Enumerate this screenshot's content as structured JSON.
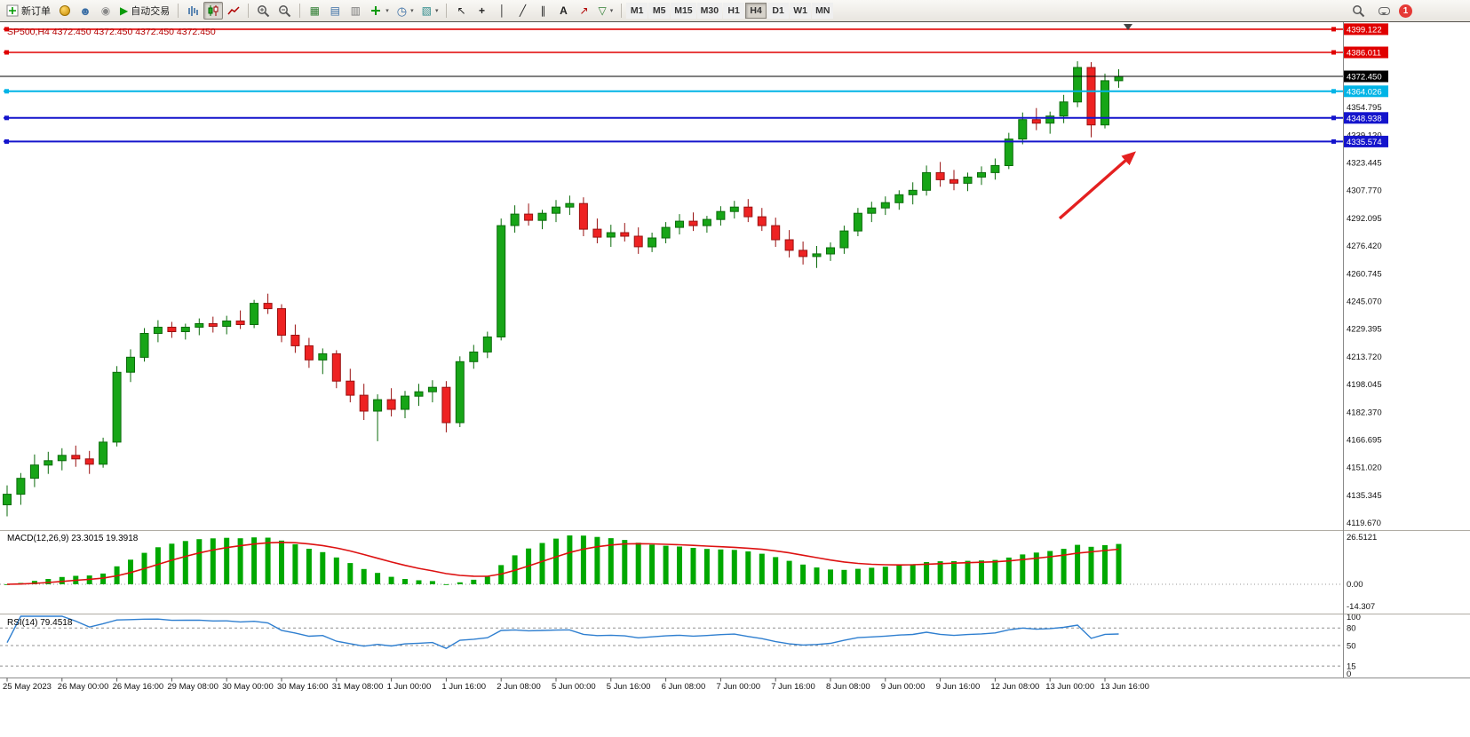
{
  "toolbar": {
    "new_order": "新订单",
    "auto_trading": "自动交易",
    "timeframes": [
      "M1",
      "M5",
      "M15",
      "M30",
      "H1",
      "H4",
      "D1",
      "W1",
      "MN"
    ],
    "active_timeframe": "H4",
    "notification_badge": "1"
  },
  "icons": {
    "profile": "☻",
    "community": "◉",
    "autotrade": "▶",
    "tile": "▦",
    "cascade": "▤",
    "arrange": "▥",
    "periods": "◷",
    "templates": "▧",
    "cursor": "↖",
    "crosshair": "+",
    "vline": "│",
    "trendline": "╱",
    "channel": "∥",
    "text_tool": "A",
    "arrow_tool": "↗",
    "shapes": "▽",
    "caret": "▾",
    "shift_marker": "▼"
  },
  "chart": {
    "title": "SP500,H4 4372.450 4372.450 4372.450 4372.450",
    "bid": {
      "label": "4372.450",
      "price": 4372.45,
      "color": "#000000"
    },
    "levels": [
      {
        "price": 4399.122,
        "label": "4399.122",
        "color": "#e00000",
        "width": 1.6
      },
      {
        "price": 4386.011,
        "label": "4386.011",
        "color": "#e00000",
        "width": 1.6
      },
      {
        "price": 4364.026,
        "label": "4364.026",
        "color": "#00b4e6",
        "width": 2
      },
      {
        "price": 4348.938,
        "label": "4348.938",
        "color": "#1414cc",
        "width": 2
      },
      {
        "price": 4335.574,
        "label": "4335.574",
        "color": "#1414cc",
        "width": 2
      }
    ],
    "y_ticks": [
      4354.795,
      4339.12,
      4323.445,
      4307.77,
      4292.095,
      4276.42,
      4260.745,
      4245.07,
      4229.395,
      4213.72,
      4198.045,
      4182.37,
      4166.695,
      4151.02,
      4135.345,
      4119.67
    ],
    "price_top": 4400.6,
    "price_bottom": 4118.2,
    "up_color": "#17a517",
    "up_stroke": "#0b6b0b",
    "down_color": "#ee2222",
    "down_stroke": "#991111"
  },
  "chart_data": {
    "type": "candlestick",
    "symbol": "SP500",
    "timeframe": "H4",
    "label_every": 4,
    "time_labels": [
      "25 May 2023",
      "26 May 00:00",
      "26 May 16:00",
      "29 May 08:00",
      "30 May 00:00",
      "30 May 16:00",
      "31 May 08:00",
      "1 Jun 00:00",
      "1 Jun 16:00",
      "2 Jun 08:00",
      "5 Jun 00:00",
      "5 Jun 16:00",
      "6 Jun 08:00",
      "7 Jun 00:00",
      "7 Jun 16:00",
      "8 Jun 08:00",
      "9 Jun 00:00",
      "9 Jun 16:00",
      "12 Jun 08:00",
      "13 Jun 00:00",
      "13 Jun 16:00"
    ],
    "ohlc": [
      [
        4130.0,
        4141.0,
        4123.5,
        4136.0
      ],
      [
        4136.0,
        4148.0,
        4130.0,
        4145.0
      ],
      [
        4145.0,
        4158.5,
        4140.0,
        4152.5
      ],
      [
        4152.5,
        4160.0,
        4147.5,
        4155.0
      ],
      [
        4155.0,
        4162.0,
        4149.5,
        4158.0
      ],
      [
        4158.0,
        4163.5,
        4151.5,
        4156.0
      ],
      [
        4156.0,
        4160.5,
        4147.5,
        4153.0
      ],
      [
        4153.0,
        4168.0,
        4151.0,
        4165.5
      ],
      [
        4165.5,
        4208.5,
        4163.0,
        4205.0
      ],
      [
        4205.0,
        4218.0,
        4199.5,
        4213.5
      ],
      [
        4213.5,
        4230.0,
        4211.0,
        4227.0
      ],
      [
        4227.0,
        4234.5,
        4222.0,
        4230.5
      ],
      [
        4230.5,
        4233.5,
        4224.5,
        4228.0
      ],
      [
        4228.0,
        4232.5,
        4223.5,
        4230.5
      ],
      [
        4230.5,
        4235.5,
        4226.0,
        4232.5
      ],
      [
        4232.5,
        4236.5,
        4227.5,
        4231.0
      ],
      [
        4231.0,
        4237.0,
        4226.5,
        4234.0
      ],
      [
        4234.0,
        4240.0,
        4229.5,
        4232.0
      ],
      [
        4232.0,
        4246.0,
        4230.0,
        4244.0
      ],
      [
        4244.0,
        4249.5,
        4238.0,
        4241.0
      ],
      [
        4241.0,
        4243.5,
        4222.0,
        4226.0
      ],
      [
        4226.0,
        4232.0,
        4216.0,
        4220.0
      ],
      [
        4220.0,
        4224.5,
        4207.5,
        4212.0
      ],
      [
        4212.0,
        4218.5,
        4204.0,
        4215.5
      ],
      [
        4215.5,
        4217.5,
        4196.0,
        4200.0
      ],
      [
        4200.0,
        4207.0,
        4188.0,
        4192.0
      ],
      [
        4192.0,
        4198.5,
        4178.0,
        4183.0
      ],
      [
        4183.0,
        4192.5,
        4166.0,
        4189.5
      ],
      [
        4189.5,
        4196.0,
        4180.0,
        4184.0
      ],
      [
        4184.0,
        4194.5,
        4179.0,
        4191.5
      ],
      [
        4191.5,
        4198.5,
        4186.0,
        4194.0
      ],
      [
        4194.0,
        4200.5,
        4188.0,
        4196.5
      ],
      [
        4196.5,
        4200.0,
        4171.0,
        4176.5
      ],
      [
        4176.5,
        4214.0,
        4174.0,
        4211.0
      ],
      [
        4211.0,
        4220.5,
        4207.0,
        4216.5
      ],
      [
        4216.5,
        4228.0,
        4213.0,
        4225.0
      ],
      [
        4225.0,
        4292.0,
        4223.0,
        4288.0
      ],
      [
        4288.0,
        4299.5,
        4284.0,
        4294.5
      ],
      [
        4294.5,
        4300.5,
        4288.0,
        4291.0
      ],
      [
        4291.0,
        4297.0,
        4286.0,
        4295.0
      ],
      [
        4295.0,
        4302.5,
        4290.0,
        4298.5
      ],
      [
        4298.5,
        4305.0,
        4294.0,
        4300.5
      ],
      [
        4300.5,
        4304.0,
        4282.0,
        4286.0
      ],
      [
        4286.0,
        4292.0,
        4278.0,
        4281.5
      ],
      [
        4281.5,
        4288.5,
        4276.0,
        4284.0
      ],
      [
        4284.0,
        4289.5,
        4279.0,
        4282.0
      ],
      [
        4282.0,
        4287.0,
        4272.0,
        4276.0
      ],
      [
        4276.0,
        4284.0,
        4273.0,
        4281.0
      ],
      [
        4281.0,
        4290.0,
        4278.0,
        4287.0
      ],
      [
        4287.0,
        4294.5,
        4283.0,
        4290.5
      ],
      [
        4290.5,
        4295.5,
        4285.0,
        4288.0
      ],
      [
        4288.0,
        4293.5,
        4284.0,
        4291.5
      ],
      [
        4291.5,
        4299.0,
        4288.0,
        4296.0
      ],
      [
        4296.0,
        4302.0,
        4292.0,
        4298.5
      ],
      [
        4298.5,
        4303.0,
        4290.0,
        4293.0
      ],
      [
        4293.0,
        4298.0,
        4285.0,
        4288.0
      ],
      [
        4288.0,
        4292.5,
        4276.0,
        4280.0
      ],
      [
        4280.0,
        4285.5,
        4270.0,
        4274.0
      ],
      [
        4274.0,
        4279.0,
        4266.0,
        4270.5
      ],
      [
        4270.5,
        4276.5,
        4264.0,
        4272.0
      ],
      [
        4272.0,
        4278.5,
        4268.0,
        4275.5
      ],
      [
        4275.5,
        4288.0,
        4272.0,
        4285.0
      ],
      [
        4285.0,
        4298.0,
        4282.0,
        4295.0
      ],
      [
        4295.0,
        4301.5,
        4290.0,
        4298.0
      ],
      [
        4298.0,
        4304.5,
        4294.0,
        4301.0
      ],
      [
        4301.0,
        4308.0,
        4297.0,
        4305.5
      ],
      [
        4305.5,
        4312.5,
        4300.0,
        4308.0
      ],
      [
        4308.0,
        4322.0,
        4305.0,
        4318.0
      ],
      [
        4318.0,
        4324.0,
        4310.0,
        4314.0
      ],
      [
        4314.0,
        4319.5,
        4308.0,
        4312.0
      ],
      [
        4312.0,
        4318.0,
        4307.5,
        4315.5
      ],
      [
        4315.5,
        4321.5,
        4311.0,
        4318.0
      ],
      [
        4318.0,
        4326.0,
        4314.0,
        4322.0
      ],
      [
        4322.0,
        4340.5,
        4320.0,
        4337.0
      ],
      [
        4337.0,
        4352.0,
        4334.0,
        4348.0
      ],
      [
        4348.0,
        4354.5,
        4342.0,
        4346.0
      ],
      [
        4346.0,
        4352.5,
        4340.0,
        4350.0
      ],
      [
        4350.0,
        4362.0,
        4346.0,
        4358.0
      ],
      [
        4358.0,
        4381.0,
        4355.0,
        4377.5
      ],
      [
        4377.5,
        4380.5,
        4338.0,
        4345.0
      ],
      [
        4345.0,
        4374.0,
        4343.0,
        4370.0
      ],
      [
        4370.0,
        4376.5,
        4366.0,
        4372.45
      ]
    ]
  },
  "macd": {
    "label": "MACD(12,26,9) 23.3015 19.3918",
    "value": 23.3015,
    "signal_value": 19.3918,
    "axis_max": "26.5121",
    "axis_zero": "0.00",
    "axis_min": "-14.307",
    "hist_color": "#00a800",
    "signal_color": "#dd1111"
  },
  "rsi": {
    "label": "RSI(14) 79.4518",
    "period": 14,
    "value": 79.4518,
    "axis": [
      "100",
      "80",
      "50",
      "15",
      "0"
    ],
    "levels": [
      80,
      50,
      15
    ],
    "line_color": "#2f7fd0"
  },
  "annotation": {
    "type": "arrow",
    "color": "#e42020"
  }
}
